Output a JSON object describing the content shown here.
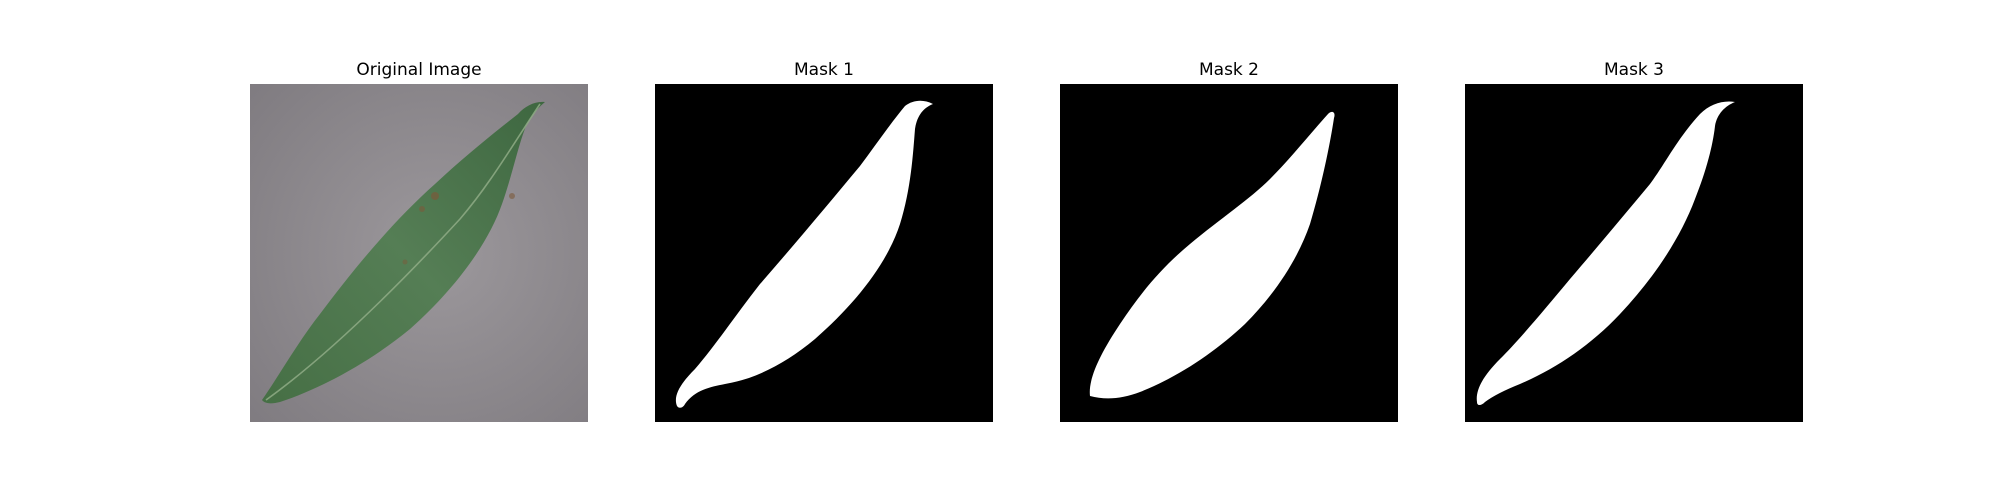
{
  "figure": {
    "panels": [
      {
        "title": "Original Image"
      },
      {
        "title": "Mask 1"
      },
      {
        "title": "Mask 2"
      },
      {
        "title": "Mask 3"
      }
    ]
  },
  "colors": {
    "background": "#ffffff",
    "mask_background": "#000000",
    "mask_foreground": "#ffffff",
    "leaf_green": "#4f7a4f",
    "leaf_dark": "#3a5e3c",
    "surface_gray": "#8f8b8f"
  }
}
